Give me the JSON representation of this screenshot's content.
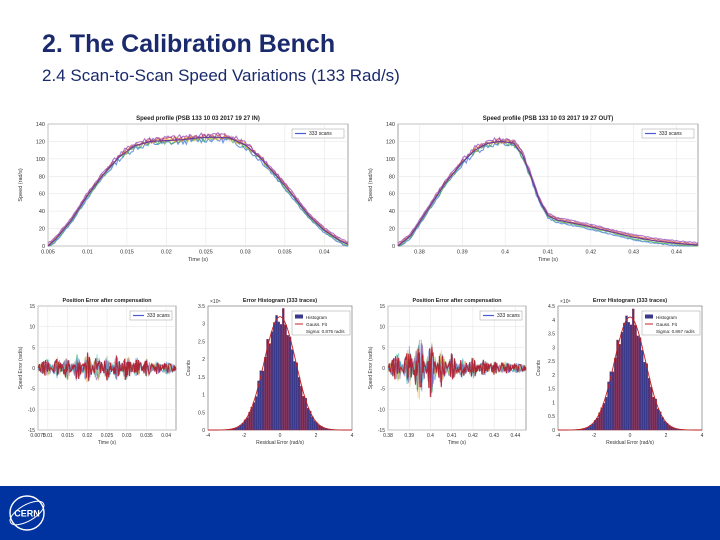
{
  "slide": {
    "title": "2. The Calibration Bench",
    "subtitle": "2.4 Scan-to-Scan Speed Variations (133 Rad/s)"
  },
  "logo": {
    "text": "CERN"
  },
  "colors": {
    "footer": "#0033a0",
    "title": "#1a2a6c",
    "band": "#6a3d9a",
    "hist_bar": "#3a3a8c",
    "gauss": "#c02020",
    "error_band": "#b01a2a"
  },
  "chart_data": [
    {
      "id": "speed_in",
      "type": "line",
      "title": "Speed profile (PSB 133 10 03 2017 19 27 IN)",
      "xlabel": "Time (s)",
      "ylabel": "Speed (rad/s)",
      "legend": "333 scans",
      "legend_position": "top-right",
      "xlim": [
        0.005,
        0.043
      ],
      "ylim": [
        0,
        140
      ],
      "xticks": [
        "0.005",
        "0.01",
        "0.015",
        "0.02",
        "0.025",
        "0.03",
        "0.035",
        "0.04"
      ],
      "yticks": [
        "0",
        "20",
        "40",
        "60",
        "80",
        "100",
        "120",
        "140"
      ],
      "grid": true,
      "series": [
        {
          "name": "333 scans",
          "x": [
            0.005,
            0.006,
            0.008,
            0.01,
            0.012,
            0.014,
            0.016,
            0.018,
            0.02,
            0.022,
            0.024,
            0.026,
            0.028,
            0.03,
            0.032,
            0.034,
            0.036,
            0.038,
            0.04,
            0.042,
            0.043
          ],
          "y": [
            0,
            8,
            30,
            58,
            82,
            102,
            115,
            120,
            121,
            122,
            124,
            125,
            124,
            116,
            100,
            80,
            58,
            35,
            18,
            6,
            2
          ]
        }
      ]
    },
    {
      "id": "speed_out",
      "type": "line",
      "title": "Speed profile (PSB 133 10 03 2017 19 27 OUT)",
      "xlabel": "Time (s)",
      "ylabel": "Speed (rad/s)",
      "legend": "333 scans",
      "legend_position": "top-right",
      "xlim": [
        0.375,
        0.445
      ],
      "ylim": [
        0,
        140
      ],
      "xticks": [
        "0.38",
        "0.39",
        "0.4",
        "0.41",
        "0.42",
        "0.43",
        "0.44"
      ],
      "yticks": [
        "0",
        "20",
        "40",
        "60",
        "80",
        "100",
        "120",
        "140"
      ],
      "grid": true,
      "series": [
        {
          "name": "333 scans",
          "x": [
            0.375,
            0.378,
            0.382,
            0.386,
            0.39,
            0.393,
            0.396,
            0.399,
            0.402,
            0.404,
            0.406,
            0.408,
            0.41,
            0.412,
            0.416,
            0.42,
            0.425,
            0.43,
            0.435,
            0.44,
            0.445
          ],
          "y": [
            0,
            12,
            42,
            72,
            96,
            110,
            118,
            120,
            118,
            105,
            80,
            52,
            35,
            30,
            26,
            22,
            16,
            10,
            6,
            3,
            1
          ]
        }
      ]
    },
    {
      "id": "pos_error_in",
      "type": "line",
      "title": "Position Error after compensation",
      "xlabel": "Time (s)",
      "ylabel": "Speed Error (rad/s)",
      "legend": "333 scans",
      "legend_position": "top-right",
      "xlim": [
        0.0075,
        0.0425
      ],
      "ylim": [
        -15,
        15
      ],
      "xticks": [
        "0.0075",
        "0.01",
        "0.015",
        "0.02",
        "0.025",
        "0.03",
        "0.035",
        "0.04"
      ],
      "yticks": [
        "-15",
        "-10",
        "-5",
        "0",
        "5",
        "10",
        "15"
      ],
      "grid": true,
      "series": [
        {
          "name": "333 scans",
          "x": [
            0.0075,
            0.01,
            0.0125,
            0.015,
            0.0175,
            0.02,
            0.0225,
            0.025,
            0.0275,
            0.03,
            0.0325,
            0.035,
            0.0375,
            0.04,
            0.0425
          ],
          "y": [
            0,
            1.5,
            -2,
            2.5,
            -3,
            3.5,
            -3,
            2.5,
            -2.5,
            3,
            -2,
            1.5,
            -1,
            0.8,
            0
          ]
        }
      ]
    },
    {
      "id": "hist_in",
      "type": "bar",
      "title": "Error Histogram (333 traces)",
      "xlabel": "Residual Error (rad/s)",
      "ylabel": "Counts",
      "exponent": "×10⁵",
      "legend_entries": [
        "Histogram",
        "Gauss. Fit",
        "Sigma: 0.875 rad/s"
      ],
      "legend_position": "top-right",
      "xlim": [
        -4,
        4
      ],
      "ylim": [
        0,
        3.5
      ],
      "xticks": [
        "-4",
        "-2",
        "0",
        "2",
        "4"
      ],
      "yticks": [
        "0",
        "0.5",
        "1",
        "1.5",
        "2",
        "2.5",
        "3",
        "3.5"
      ],
      "sigma": 0.875,
      "peak": 3.2
    },
    {
      "id": "pos_error_out",
      "type": "line",
      "title": "Position Error after compensation",
      "xlabel": "Time (s)",
      "ylabel": "Speed Error (rad/s)",
      "legend": "333 scans",
      "legend_position": "top-right",
      "xlim": [
        0.38,
        0.445
      ],
      "ylim": [
        -15,
        15
      ],
      "xticks": [
        "0.38",
        "0.39",
        "0.4",
        "0.41",
        "0.42",
        "0.43",
        "0.44"
      ],
      "yticks": [
        "-15",
        "-10",
        "-5",
        "0",
        "5",
        "10",
        "15"
      ],
      "grid": true,
      "series": [
        {
          "name": "333 scans",
          "x": [
            0.38,
            0.385,
            0.39,
            0.395,
            0.4,
            0.405,
            0.41,
            0.415,
            0.42,
            0.425,
            0.43,
            0.435,
            0.44,
            0.445
          ],
          "y": [
            0,
            3,
            -5,
            9,
            -7,
            4,
            -3,
            2,
            -2,
            1.5,
            -1,
            1,
            -0.5,
            0
          ]
        }
      ]
    },
    {
      "id": "hist_out",
      "type": "bar",
      "title": "Error Histogram (333 traces)",
      "xlabel": "Residual Error (rad/s)",
      "ylabel": "Counts",
      "exponent": "×10⁵",
      "legend_entries": [
        "Histogram",
        "Gauss. Fit",
        "Sigma: 0.867 rad/s"
      ],
      "legend_position": "top-right",
      "xlim": [
        -4,
        4
      ],
      "ylim": [
        0,
        4.5
      ],
      "xticks": [
        "-4",
        "-2",
        "0",
        "2",
        "4"
      ],
      "yticks": [
        "0",
        "0.5",
        "1",
        "1.5",
        "2",
        "2.5",
        "3",
        "3.5",
        "4",
        "4.5"
      ],
      "sigma": 0.867,
      "peak": 4.1
    }
  ]
}
